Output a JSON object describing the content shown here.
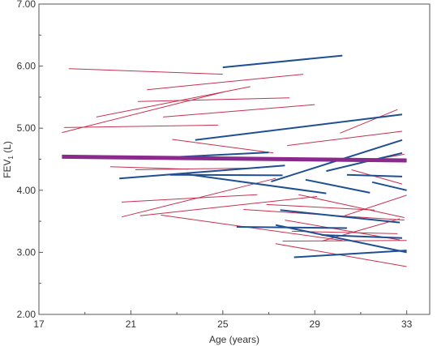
{
  "chart_data": {
    "type": "line",
    "title": "",
    "xlabel": "Age (years)",
    "ylabel_main": "FEV",
    "ylabel_sub": "1",
    "ylabel_unit": " (L)",
    "xlim": [
      17,
      34
    ],
    "ylim": [
      2.0,
      7.0
    ],
    "x_ticks": [
      17,
      21,
      25,
      29,
      33
    ],
    "x_tick_labels": [
      "17",
      "21",
      "25",
      "29",
      "33"
    ],
    "y_ticks": [
      2.0,
      3.0,
      4.0,
      5.0,
      6.0,
      7.0
    ],
    "y_tick_labels": [
      "2.00",
      "3.00",
      "4.00",
      "5.00",
      "6.00",
      "7.00"
    ],
    "grid": false,
    "colors": {
      "red": "#c8304e",
      "blue": "#1f4f93",
      "mean": "#8a2a8c",
      "axis": "#555555"
    },
    "series": [
      {
        "color": "red",
        "x": [
          18.3,
          25.0
        ],
        "y": [
          5.96,
          5.87
        ]
      },
      {
        "color": "red",
        "x": [
          18.0,
          25.1
        ],
        "y": [
          4.93,
          5.59
        ]
      },
      {
        "color": "red",
        "x": [
          21.7,
          28.5
        ],
        "y": [
          5.62,
          5.87
        ]
      },
      {
        "color": "red",
        "x": [
          21.3,
          27.9
        ],
        "y": [
          5.43,
          5.49
        ]
      },
      {
        "color": "red",
        "x": [
          19.5,
          26.2
        ],
        "y": [
          5.18,
          5.67
        ]
      },
      {
        "color": "red",
        "x": [
          18.1,
          24.8
        ],
        "y": [
          5.01,
          5.05
        ]
      },
      {
        "color": "red",
        "x": [
          22.4,
          29.0
        ],
        "y": [
          5.18,
          5.38
        ]
      },
      {
        "color": "red",
        "x": [
          22.8,
          27.2
        ],
        "y": [
          4.82,
          4.6
        ]
      },
      {
        "color": "red",
        "x": [
          27.8,
          32.8
        ],
        "y": [
          4.72,
          4.95
        ]
      },
      {
        "color": "red",
        "x": [
          30.1,
          32.6
        ],
        "y": [
          4.92,
          5.3
        ]
      },
      {
        "color": "red",
        "x": [
          21.2,
          26.6
        ],
        "y": [
          4.33,
          4.36
        ]
      },
      {
        "color": "red",
        "x": [
          20.1,
          23.5
        ],
        "y": [
          4.38,
          4.34
        ]
      },
      {
        "color": "red",
        "x": [
          20.6,
          26.5
        ],
        "y": [
          3.81,
          3.93
        ]
      },
      {
        "color": "red",
        "x": [
          20.6,
          27.3
        ],
        "y": [
          3.57,
          4.19
        ]
      },
      {
        "color": "red",
        "x": [
          21.4,
          29.1
        ],
        "y": [
          3.59,
          3.9
        ]
      },
      {
        "color": "red",
        "x": [
          22.3,
          30.2
        ],
        "y": [
          3.6,
          3.19
        ]
      },
      {
        "color": "red",
        "x": [
          25.9,
          32.9
        ],
        "y": [
          3.69,
          3.52
        ]
      },
      {
        "color": "red",
        "x": [
          27.3,
          33.0
        ],
        "y": [
          3.14,
          2.77
        ]
      },
      {
        "color": "red",
        "x": [
          27.6,
          33.0
        ],
        "y": [
          3.18,
          3.19
        ]
      },
      {
        "color": "red",
        "x": [
          28.0,
          32.6
        ],
        "y": [
          3.34,
          3.3
        ]
      },
      {
        "color": "red",
        "x": [
          28.3,
          32.9
        ],
        "y": [
          3.93,
          3.56
        ]
      },
      {
        "color": "red",
        "x": [
          29.3,
          32.7
        ],
        "y": [
          3.18,
          3.54
        ]
      },
      {
        "color": "red",
        "x": [
          30.3,
          33.0
        ],
        "y": [
          3.59,
          3.92
        ]
      },
      {
        "color": "red",
        "x": [
          30.6,
          32.8
        ],
        "y": [
          4.33,
          4.1
        ]
      },
      {
        "color": "red",
        "x": [
          31.2,
          32.9
        ],
        "y": [
          4.47,
          4.58
        ]
      },
      {
        "color": "red",
        "x": [
          27.7,
          32.7
        ],
        "y": [
          3.52,
          3.2
        ]
      },
      {
        "color": "red",
        "x": [
          26.9,
          31.6
        ],
        "y": [
          3.77,
          3.68
        ]
      },
      {
        "color": "blue",
        "x": [
          25.0,
          30.2
        ],
        "y": [
          5.98,
          6.17
        ]
      },
      {
        "color": "blue",
        "x": [
          23.8,
          32.8
        ],
        "y": [
          4.81,
          5.22
        ]
      },
      {
        "color": "blue",
        "x": [
          22.6,
          27.0
        ],
        "y": [
          4.53,
          4.61
        ]
      },
      {
        "color": "blue",
        "x": [
          20.5,
          27.7
        ],
        "y": [
          4.19,
          4.4
        ]
      },
      {
        "color": "blue",
        "x": [
          22.7,
          27.6
        ],
        "y": [
          4.25,
          4.24
        ]
      },
      {
        "color": "blue",
        "x": [
          23.4,
          29.5
        ],
        "y": [
          4.26,
          3.95
        ]
      },
      {
        "color": "blue",
        "x": [
          27.1,
          32.8
        ],
        "y": [
          4.14,
          4.81
        ]
      },
      {
        "color": "blue",
        "x": [
          29.5,
          32.8
        ],
        "y": [
          4.31,
          4.6
        ]
      },
      {
        "color": "blue",
        "x": [
          31.5,
          33.0
        ],
        "y": [
          4.13,
          4.0
        ]
      },
      {
        "color": "blue",
        "x": [
          30.4,
          32.8
        ],
        "y": [
          4.25,
          4.22
        ]
      },
      {
        "color": "blue",
        "x": [
          28.6,
          31.4
        ],
        "y": [
          4.17,
          3.96
        ]
      },
      {
        "color": "blue",
        "x": [
          27.5,
          32.7
        ],
        "y": [
          3.68,
          3.48
        ]
      },
      {
        "color": "blue",
        "x": [
          27.3,
          33.0
        ],
        "y": [
          3.44,
          3.0
        ]
      },
      {
        "color": "blue",
        "x": [
          25.6,
          30.4
        ],
        "y": [
          3.41,
          3.39
        ]
      },
      {
        "color": "blue",
        "x": [
          28.1,
          33.0
        ],
        "y": [
          2.92,
          3.03
        ]
      },
      {
        "color": "blue",
        "x": [
          29.3,
          32.8
        ],
        "y": [
          3.28,
          3.23
        ]
      },
      {
        "color": "mean",
        "x": [
          18.0,
          33.0
        ],
        "y": [
          4.54,
          4.48
        ]
      }
    ]
  }
}
